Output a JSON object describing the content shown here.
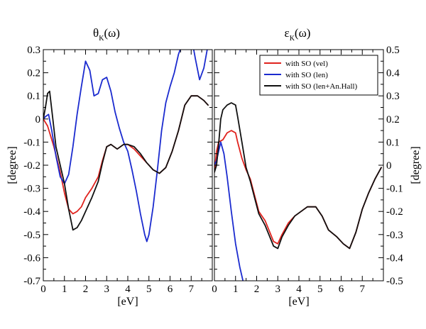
{
  "chart_data": [
    {
      "type": "line",
      "title": "θ",
      "title_subscript": "K",
      "title_suffix": "(ω)",
      "xlabel": "[eV]",
      "ylabel": "[degree]",
      "xlim": [
        0,
        8
      ],
      "ylim": [
        -0.7,
        0.3
      ],
      "xticks": [
        0,
        1,
        2,
        3,
        4,
        5,
        6,
        7
      ],
      "yticks": [
        -0.7,
        -0.6,
        -0.5,
        -0.4,
        -0.3,
        -0.2,
        -0.1,
        0,
        0.1,
        0.2,
        0.3
      ],
      "ytick_labels": [
        "-0.7",
        "-0.6",
        "-0.5",
        "-0.4",
        "-0.3",
        "-0.2",
        "-0.1",
        "0",
        "0.1",
        "0.2",
        "0.3"
      ],
      "series": [
        {
          "color": "#e0231e",
          "x": [
            0,
            0.2,
            0.5,
            0.8,
            1.0,
            1.2,
            1.4,
            1.6,
            1.8,
            2.0,
            2.3,
            2.6,
            2.8,
            3.0,
            3.2,
            3.5,
            3.8,
            4.0,
            4.3,
            4.6,
            4.9,
            5.2,
            5.5,
            5.8,
            6.1,
            6.4,
            6.7,
            7.0,
            7.3,
            7.6,
            7.8
          ],
          "y": [
            0,
            -0.03,
            -0.12,
            -0.23,
            -0.32,
            -0.39,
            -0.41,
            -0.4,
            -0.38,
            -0.34,
            -0.3,
            -0.25,
            -0.18,
            -0.12,
            -0.11,
            -0.13,
            -0.11,
            -0.11,
            -0.13,
            -0.16,
            -0.19,
            -0.22,
            -0.235,
            -0.21,
            -0.14,
            -0.05,
            0.06,
            0.1,
            0.1,
            0.08,
            0.06
          ]
        },
        {
          "color": "#1b2bcf",
          "x": [
            0,
            0.1,
            0.25,
            0.4,
            0.6,
            0.8,
            1.0,
            1.2,
            1.4,
            1.6,
            1.8,
            2.0,
            2.2,
            2.4,
            2.6,
            2.8,
            3.0,
            3.2,
            3.4,
            3.6,
            3.8,
            4.0,
            4.2,
            4.4,
            4.6,
            4.8,
            4.9,
            5.0,
            5.2,
            5.4,
            5.6,
            5.8,
            6.0,
            6.2,
            6.4,
            6.6,
            6.8,
            7.0,
            7.2,
            7.4,
            7.6,
            7.8
          ],
          "y": [
            0,
            0.01,
            0.02,
            -0.05,
            -0.16,
            -0.25,
            -0.28,
            -0.24,
            -0.12,
            0.02,
            0.14,
            0.25,
            0.21,
            0.1,
            0.11,
            0.17,
            0.18,
            0.12,
            0.03,
            -0.04,
            -0.1,
            -0.14,
            -0.22,
            -0.31,
            -0.41,
            -0.5,
            -0.53,
            -0.5,
            -0.38,
            -0.22,
            -0.05,
            0.07,
            0.14,
            0.2,
            0.28,
            0.33,
            0.36,
            0.36,
            0.26,
            0.17,
            0.22,
            0.32
          ]
        },
        {
          "color": "#111111",
          "x": [
            0,
            0.1,
            0.2,
            0.3,
            0.45,
            0.6,
            0.8,
            1.0,
            1.2,
            1.4,
            1.6,
            1.8,
            2.0,
            2.3,
            2.6,
            2.8,
            3.0,
            3.2,
            3.5,
            3.8,
            4.0,
            4.3,
            4.6,
            4.9,
            5.2,
            5.5,
            5.8,
            6.1,
            6.4,
            6.7,
            7.0,
            7.3,
            7.6,
            7.8
          ],
          "y": [
            0,
            0.05,
            0.11,
            0.12,
            0.0,
            -0.12,
            -0.2,
            -0.28,
            -0.39,
            -0.48,
            -0.47,
            -0.44,
            -0.4,
            -0.34,
            -0.27,
            -0.19,
            -0.12,
            -0.11,
            -0.13,
            -0.11,
            -0.11,
            -0.12,
            -0.15,
            -0.19,
            -0.22,
            -0.235,
            -0.21,
            -0.14,
            -0.05,
            0.06,
            0.1,
            0.1,
            0.08,
            0.06
          ]
        }
      ]
    },
    {
      "type": "line",
      "title": "ε",
      "title_subscript": "K",
      "title_suffix": "(ω)",
      "xlabel": "[eV]",
      "ylabel": "[degree]",
      "xlim": [
        0,
        8
      ],
      "ylim": [
        -0.5,
        0.5
      ],
      "xticks": [
        0,
        1,
        2,
        3,
        4,
        5,
        6,
        7
      ],
      "yticks": [
        -0.5,
        -0.4,
        -0.3,
        -0.2,
        -0.1,
        0,
        0.1,
        0.2,
        0.3,
        0.4,
        0.5
      ],
      "ytick_labels": [
        "-0.5",
        "-0.4",
        "-0.3",
        "-0.2",
        "-0.1",
        "0",
        "0.1",
        "0.2",
        "0.3",
        "0.4",
        "0.5"
      ],
      "legend": {
        "position": "top-right",
        "entries": [
          {
            "label": "with SO (vel)",
            "color": "#e0231e"
          },
          {
            "label": "with SO (len)",
            "color": "#1b2bcf"
          },
          {
            "label": "with SO (len+An.Hall)",
            "color": "#111111"
          }
        ]
      },
      "series": [
        {
          "color": "#e0231e",
          "x": [
            0,
            0.1,
            0.2,
            0.4,
            0.6,
            0.8,
            1.0,
            1.1,
            1.3,
            1.5,
            1.7,
            1.9,
            2.1,
            2.4,
            2.8,
            3.0,
            3.2,
            3.5,
            3.8,
            4.1,
            4.4,
            4.8,
            5.1,
            5.4,
            5.8,
            6.1,
            6.4,
            6.7,
            7.0,
            7.3,
            7.6,
            7.9
          ],
          "y": [
            -0.03,
            0.06,
            0.1,
            0.11,
            0.14,
            0.15,
            0.14,
            0.1,
            0.03,
            -0.02,
            -0.06,
            -0.13,
            -0.2,
            -0.24,
            -0.33,
            -0.34,
            -0.3,
            -0.25,
            -0.22,
            -0.2,
            -0.18,
            -0.18,
            -0.22,
            -0.28,
            -0.31,
            -0.34,
            -0.36,
            -0.29,
            -0.19,
            -0.12,
            -0.06,
            -0.01
          ]
        },
        {
          "color": "#1b2bcf",
          "x": [
            0,
            0.1,
            0.2,
            0.3,
            0.45,
            0.6,
            0.8,
            1.0,
            1.2,
            1.35
          ],
          "y": [
            0,
            0.02,
            0.06,
            0.1,
            0.05,
            -0.05,
            -0.2,
            -0.34,
            -0.44,
            -0.5
          ]
        },
        {
          "color": "#111111",
          "x": [
            0,
            0.1,
            0.2,
            0.3,
            0.4,
            0.6,
            0.8,
            1.0,
            1.1,
            1.3,
            1.5,
            1.7,
            1.9,
            2.1,
            2.4,
            2.8,
            3.0,
            3.2,
            3.5,
            3.8,
            4.1,
            4.4,
            4.8,
            5.1,
            5.4,
            5.8,
            6.1,
            6.4,
            6.7,
            7.0,
            7.3,
            7.6,
            7.9
          ],
          "y": [
            -0.03,
            0.0,
            0.09,
            0.2,
            0.24,
            0.26,
            0.27,
            0.26,
            0.21,
            0.1,
            -0.01,
            -0.07,
            -0.14,
            -0.21,
            -0.26,
            -0.35,
            -0.36,
            -0.31,
            -0.26,
            -0.22,
            -0.2,
            -0.18,
            -0.18,
            -0.22,
            -0.28,
            -0.31,
            -0.34,
            -0.36,
            -0.29,
            -0.19,
            -0.12,
            -0.06,
            -0.01
          ]
        }
      ]
    }
  ]
}
